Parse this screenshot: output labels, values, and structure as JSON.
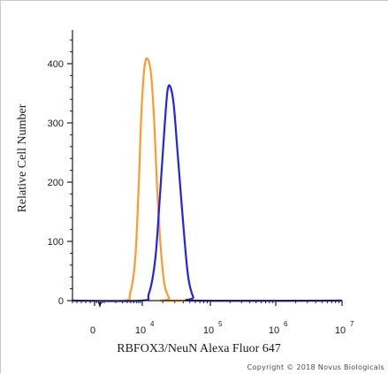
{
  "copyright": "Copyright © 2018 Novus Biologicals",
  "chart_data": {
    "type": "line",
    "title": "",
    "xlabel": "RBFOX3/NeuN Alexa Fluor 647",
    "ylabel": "Relative Cell Number",
    "xscale": "biexponential",
    "xlim": [
      -1000,
      10000000
    ],
    "ylim": [
      0,
      450
    ],
    "grid": false,
    "legend": "none",
    "x_ticks": [
      {
        "value": 0,
        "base": "0",
        "exp": ""
      },
      {
        "value": 10000,
        "base": "10",
        "exp": "4"
      },
      {
        "value": 100000,
        "base": "10",
        "exp": "5"
      },
      {
        "value": 1000000,
        "base": "10",
        "exp": "6"
      },
      {
        "value": 10000000,
        "base": "10",
        "exp": "7"
      }
    ],
    "y_ticks": [
      0,
      100,
      200,
      300,
      400
    ],
    "series": [
      {
        "color": "#ff9a2a",
        "x": [
          -1000,
          3200,
          4800,
          6500,
          8000,
          9500,
          10800,
          12000,
          13500,
          15000,
          16500,
          18500,
          21000,
          25000,
          30000,
          10000000
        ],
        "y": [
          0,
          0,
          12,
          70,
          190,
          320,
          395,
          408,
          380,
          300,
          190,
          95,
          30,
          4,
          0,
          0
        ]
      },
      {
        "color": "#2222ee",
        "x": [
          -1000,
          9000,
          12500,
          15500,
          18000,
          21000,
          23500,
          26000,
          29000,
          33000,
          38000,
          43000,
          48000,
          56000,
          65000,
          10000000
        ],
        "y": [
          0,
          0,
          12,
          70,
          170,
          285,
          355,
          360,
          330,
          250,
          160,
          85,
          35,
          6,
          0,
          0
        ]
      }
    ]
  }
}
